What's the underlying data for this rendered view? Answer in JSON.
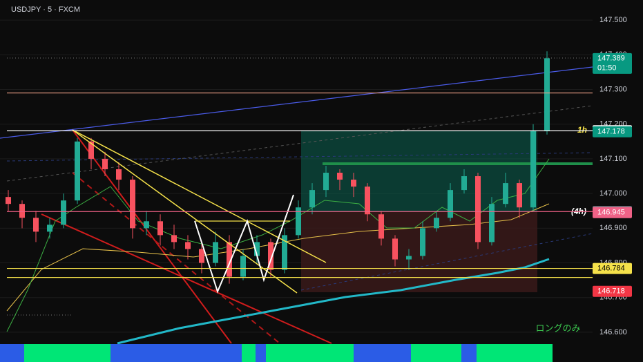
{
  "chart_data": {
    "type": "candlestick",
    "title": "USDJPY · 5 · FXCM",
    "open": [
      146.99,
      146.97,
      146.93,
      146.89,
      146.91,
      146.98,
      147.15,
      147.1,
      147.07,
      147.04,
      146.9,
      146.92,
      146.88,
      146.86,
      146.84,
      146.8,
      146.86,
      146.76,
      146.82,
      146.86,
      146.78,
      146.88,
      146.96,
      147.01,
      147.06,
      147.04,
      147.02,
      146.94,
      146.87,
      146.81,
      146.82,
      146.9,
      146.93,
      147.01,
      147.05,
      146.86,
      146.97,
      147.03,
      146.96,
      147.18
    ],
    "high": [
      147.01,
      146.98,
      146.95,
      146.93,
      147.0,
      147.16,
      147.16,
      147.12,
      147.09,
      147.05,
      146.95,
      146.94,
      146.91,
      146.88,
      146.86,
      146.89,
      146.88,
      146.84,
      146.88,
      146.87,
      146.9,
      146.98,
      147.03,
      147.08,
      147.07,
      147.06,
      147.03,
      146.95,
      146.88,
      146.84,
      146.92,
      146.95,
      147.03,
      147.07,
      147.06,
      146.99,
      147.06,
      147.04,
      147.2,
      147.41
    ],
    "low": [
      146.95,
      146.9,
      146.86,
      146.87,
      146.9,
      146.97,
      147.07,
      147.05,
      147.01,
      146.87,
      146.88,
      146.85,
      146.84,
      146.81,
      146.77,
      146.79,
      146.74,
      146.75,
      146.8,
      146.76,
      146.77,
      146.87,
      146.94,
      146.99,
      147.01,
      146.99,
      146.92,
      146.85,
      146.79,
      146.78,
      146.81,
      146.89,
      146.92,
      147.0,
      146.84,
      146.85,
      146.96,
      146.93,
      146.95,
      147.17
    ],
    "close": [
      146.97,
      146.93,
      146.89,
      146.91,
      146.98,
      147.15,
      147.1,
      147.07,
      147.04,
      146.9,
      146.92,
      146.88,
      146.86,
      146.84,
      146.8,
      146.86,
      146.76,
      146.82,
      146.86,
      146.78,
      146.88,
      146.96,
      147.01,
      147.06,
      147.04,
      147.02,
      146.94,
      146.87,
      146.81,
      146.82,
      146.9,
      146.93,
      147.01,
      147.05,
      146.86,
      146.97,
      147.03,
      146.96,
      147.18,
      147.39
    ],
    "up_color": "#22ab94",
    "down_color": "#f7525f",
    "ylim": [
      146.568,
      147.558
    ],
    "yticks": [
      {
        "value": 146.6,
        "label": "146.600"
      },
      {
        "value": 146.7,
        "label": "146.700"
      },
      {
        "value": 146.8,
        "label": "146.800"
      },
      {
        "value": 146.9,
        "label": "146.900"
      },
      {
        "value": 147.0,
        "label": "147.000"
      },
      {
        "value": 147.1,
        "label": "147.100"
      },
      {
        "value": 147.2,
        "label": "147.200"
      },
      {
        "value": 147.3,
        "label": "147.300"
      },
      {
        "value": 147.4,
        "label": "147.400"
      },
      {
        "value": 147.5,
        "label": "147.500"
      }
    ],
    "grid": true,
    "levels": [
      {
        "value": 147.29,
        "color": "#f4a38a"
      },
      {
        "value": 147.181,
        "color": "#ffffff"
      },
      {
        "value": 146.948,
        "color": "#f06287"
      },
      {
        "value": 146.784,
        "color": "#f5e14a"
      },
      {
        "value": 146.758,
        "color": "#f5e14a"
      }
    ],
    "price_tags": [
      {
        "value": 147.389,
        "color": "#089981",
        "text_color": "#ffffff"
      },
      {
        "value": 147.181,
        "color": "#ffffff",
        "text_color": "#000000"
      },
      {
        "value": 147.178,
        "color": "#089981",
        "text_color": "#ffffff"
      },
      {
        "value": 146.948,
        "color": "#787b86",
        "text_color": "#ffffff"
      },
      {
        "value": 146.945,
        "color": "#f06287",
        "text_color": "#ffffff"
      },
      {
        "value": 146.784,
        "color": "#f5e14a",
        "text_color": "#000000"
      },
      {
        "value": 146.718,
        "color": "#f23645",
        "text_color": "#ffffff"
      }
    ],
    "countdown": "01:50",
    "annotations": [
      "1h",
      "(4h)",
      "ロングのみ"
    ]
  }
}
